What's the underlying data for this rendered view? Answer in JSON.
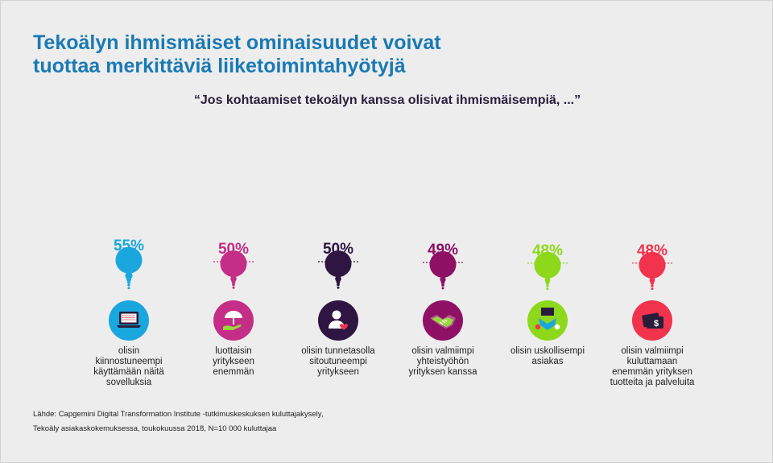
{
  "title_lines": [
    "Tekoälyn ihmismäiset ominaisuudet voivat",
    "tuottaa merkittäviä liiketoimintahyötyjä"
  ],
  "subtitle": "“Jos kohtaamiset tekoälyn kanssa olisivat ihmismäisempiä, ...”",
  "chart_data": {
    "type": "bar",
    "title": "Tekoälyn ihmismäiset ominaisuudet voivat tuottaa merkittäviä liiketoimintahyötyjä",
    "subtitle": "“Jos kohtaamiset tekoälyn kanssa olisivat ihmismäisempiä, ...”",
    "categories": [
      "olisin kiinnostuneempi käyttämään näitä sovelluksia",
      "luottaisin yritykseen enemmän",
      "olisin tunnetasolla sitoutuneempi yritykseen",
      "olisin valmiimpi yhteistyöhön yrityksen kanssa",
      "olisin uskollisempi asiakas",
      "olisin valmiimpi kuluttamaan enemmän yrityksen tuotteita ja palveluita"
    ],
    "values": [
      55,
      50,
      50,
      49,
      48,
      48
    ],
    "value_labels": [
      "55%",
      "50%",
      "50%",
      "49%",
      "48%",
      "48%"
    ],
    "colors": [
      "#1aa7de",
      "#c42e86",
      "#2e1542",
      "#8e1166",
      "#8ed81c",
      "#f2334e"
    ]
  },
  "items": [
    {
      "label": "olisin\nkiinnostuneempi\nkäyttämään näitä\nsovelluksia",
      "icon": "laptop-icon"
    },
    {
      "label": "luottaisin\nyritykseen\nenemmän",
      "icon": "umbrella-hand-icon"
    },
    {
      "label": "olisin tunnetasolla\nsitoutuneempi\nyritykseen",
      "icon": "person-heart-icon"
    },
    {
      "label": "olisin valmiimpi\nyhteistyöhön\nyrityksen kanssa",
      "icon": "handshake-icon"
    },
    {
      "label": "olisin uskollisempi\nasiakas",
      "icon": "hands-together-icon"
    },
    {
      "label": "olisin valmiimpi\nkuluttamaan\nenemmän yrityksen\ntuotteita ja palveluita",
      "icon": "wallet-dollar-icon"
    }
  ],
  "source_lines": [
    "Lähde: Capgemini Digital Transformation Institute -tutkimuskeskuksen kuluttajakysely,",
    "Tekoäly asiakaskokemuksessa, toukokuussa 2018, N=10 000 kuluttajaa"
  ]
}
